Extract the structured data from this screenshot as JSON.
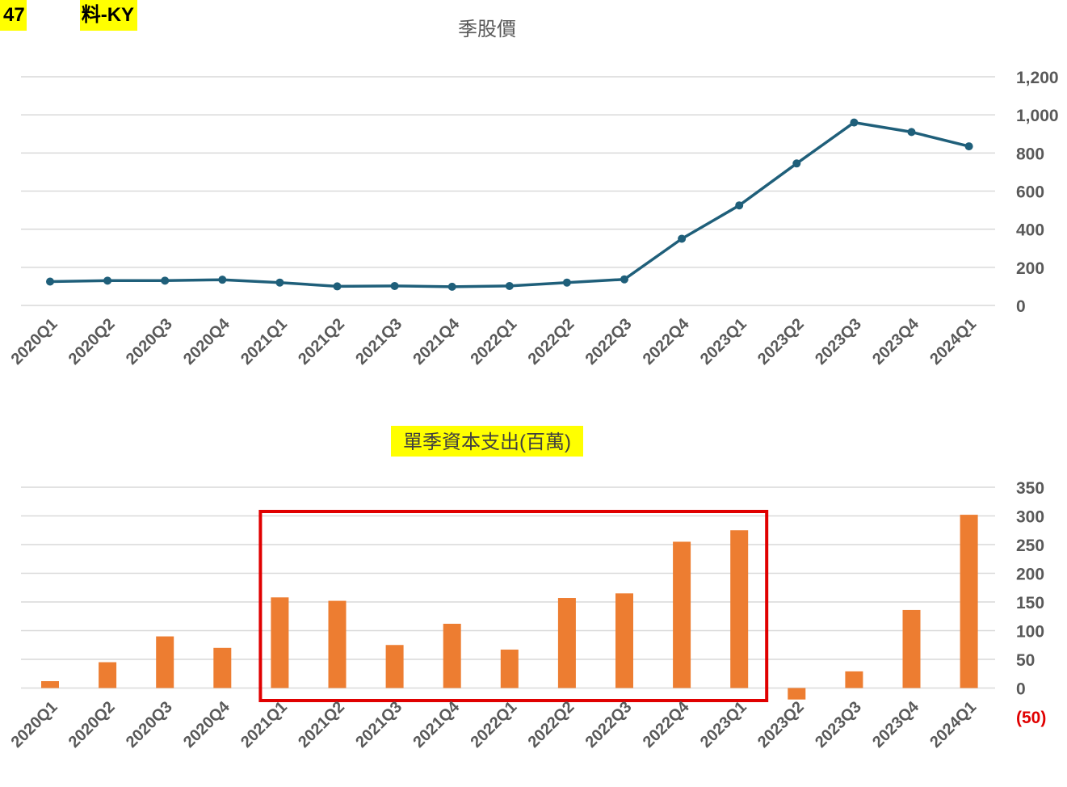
{
  "header": {
    "code_prefix": "47",
    "name_suffix": "料-KY"
  },
  "colors": {
    "line": "#1f5f7a",
    "bar": "#ed7d31",
    "grid": "#d9d9d9",
    "highlight_box": "#e00000",
    "negative_label": "#e00000",
    "title_highlight": "#ffff00"
  },
  "chart_data": [
    {
      "type": "line",
      "title": "季股價",
      "categories": [
        "2020Q1",
        "2020Q2",
        "2020Q3",
        "2020Q4",
        "2021Q1",
        "2021Q2",
        "2021Q3",
        "2021Q4",
        "2022Q1",
        "2022Q2",
        "2022Q3",
        "2022Q4",
        "2023Q1",
        "2023Q2",
        "2023Q3",
        "2023Q4",
        "2024Q1"
      ],
      "values": [
        125,
        130,
        130,
        135,
        120,
        100,
        102,
        98,
        102,
        120,
        137,
        350,
        525,
        745,
        960,
        910,
        835
      ],
      "ylim": [
        0,
        1200
      ],
      "yticks": [
        "0",
        "200",
        "400",
        "600",
        "800",
        "1,000",
        "1,200"
      ],
      "grid": true,
      "axis_position": "right"
    },
    {
      "type": "bar",
      "title": "單季資本支出(百萬)",
      "categories": [
        "2020Q1",
        "2020Q2",
        "2020Q3",
        "2020Q4",
        "2021Q1",
        "2021Q2",
        "2021Q3",
        "2021Q4",
        "2022Q1",
        "2022Q2",
        "2022Q3",
        "2022Q4",
        "2023Q1",
        "2023Q2",
        "2023Q3",
        "2023Q4",
        "2024Q1"
      ],
      "values": [
        12,
        45,
        90,
        70,
        158,
        152,
        75,
        112,
        67,
        157,
        165,
        255,
        275,
        -20,
        29,
        136,
        302
      ],
      "ylim": [
        -50,
        350
      ],
      "yticks": [
        "(50)",
        "0",
        "50",
        "100",
        "150",
        "200",
        "250",
        "300",
        "350"
      ],
      "grid": true,
      "axis_position": "right",
      "highlight_range": [
        "2021Q1",
        "2023Q1"
      ]
    }
  ]
}
